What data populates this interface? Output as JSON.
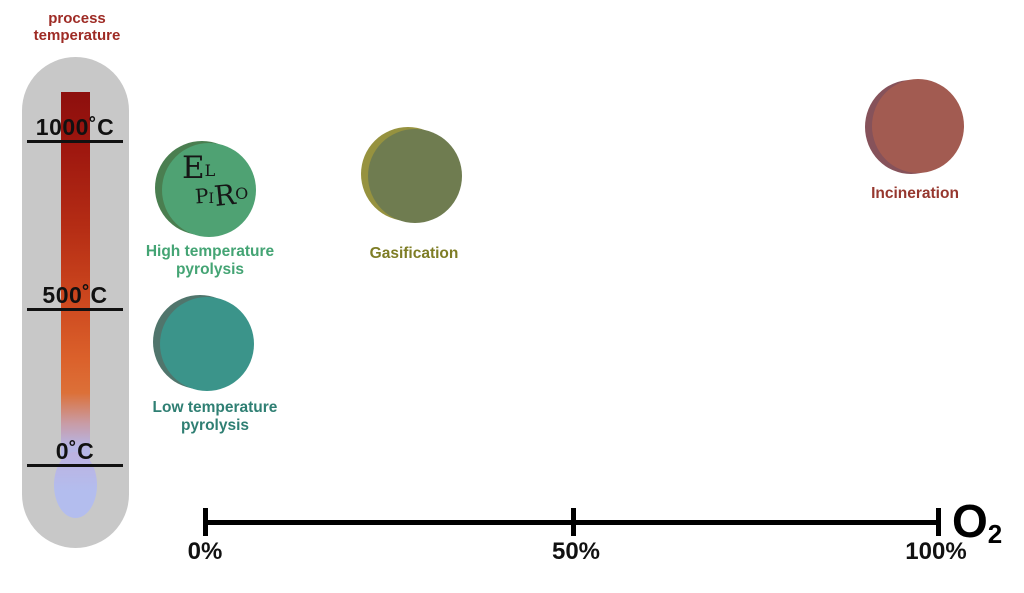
{
  "title": {
    "lines": [
      "process",
      "temperature"
    ],
    "color": "#9e2b25"
  },
  "thermometer": {
    "bg": "#c8c8c8",
    "color_top": "#8d0f0d",
    "color_mid": "#cc471e",
    "color_orange": "#dc7038",
    "color_cold": "#b3bdee",
    "ticks": [
      {
        "label": "1000˚C"
      },
      {
        "label": "500˚C"
      },
      {
        "label": "0˚C"
      }
    ]
  },
  "logo": {
    "letters": [
      "E",
      "L",
      "P",
      "I",
      "R",
      "O"
    ],
    "color": "#161616"
  },
  "processes": [
    {
      "name": "high-temperature-pyrolysis",
      "label_line1": "High temperature",
      "label_line2": "pyrolysis",
      "fill": "#4fa273",
      "rim": "#4a7e50",
      "label_color": "#44a474"
    },
    {
      "name": "gasification",
      "label_line1": "Gasification",
      "label_line2": "",
      "fill": "#6f7c50",
      "rim": "#96923f",
      "label_color": "#7e7d25"
    },
    {
      "name": "low-temperature-pyrolysis",
      "label_line1": "Low temperature",
      "label_line2": "pyrolysis",
      "fill": "#3b948a",
      "rim": "#50756c",
      "label_color": "#2f7f73"
    },
    {
      "name": "incineration",
      "label_line1": "Incineration",
      "label_line2": "",
      "fill": "#a25b51",
      "rim": "#86525a",
      "label_color": "#96372e"
    }
  ],
  "axis": {
    "color": "#000000",
    "ticks": [
      "0%",
      "50%",
      "100%"
    ],
    "symbol": "O",
    "symbol_sub": "2"
  },
  "chart_data": {
    "type": "scatter",
    "xlabel": "O2",
    "ylabel": "process temperature",
    "x_ticks": [
      "0%",
      "50%",
      "100%"
    ],
    "y_ticks": [
      "0˚C",
      "500˚C",
      "1000˚C"
    ],
    "points": [
      {
        "label": "High temperature pyrolysis",
        "o2_percent_est": 0,
        "temperature_c_est": 850
      },
      {
        "label": "Gasification",
        "o2_percent_est": 28,
        "temperature_c_est": 900
      },
      {
        "label": "Low temperature pyrolysis",
        "o2_percent_est": 0,
        "temperature_c_est": 380
      },
      {
        "label": "Incineration",
        "o2_percent_est": 97,
        "temperature_c_est": 1050
      }
    ]
  }
}
